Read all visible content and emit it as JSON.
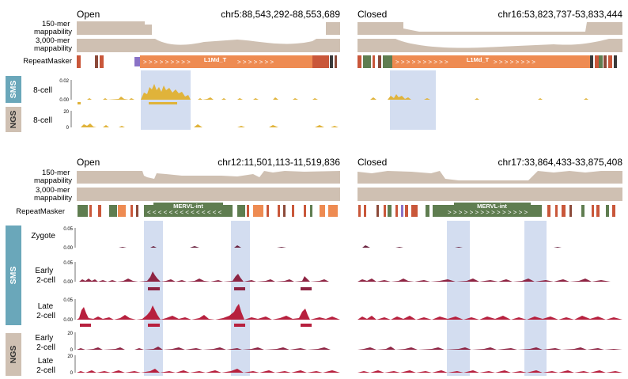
{
  "colors": {
    "mappability": "#cfc0b2",
    "sms_8cell": "#e0b33a",
    "sms_2cell": "#8e2443",
    "late_2cell": "#b7203e",
    "highlight": "#d3ddf0",
    "sms_tab": "#6aa7ba",
    "ngs_tab": "#cfc0b2",
    "line_orange": "#ee8b52",
    "ervl_green": "#5f7d50"
  },
  "top": {
    "left_panel": {
      "state": "Open",
      "locus": "chr5:88,543,292-88,553,689"
    },
    "right_panel": {
      "state": "Closed",
      "locus": "chr16:53,823,737-53,833,444"
    },
    "track_labels": {
      "map150": "150-mer\nmappability",
      "map3000": "3,000-mer\nmappability",
      "repeatmasker": "RepeatMasker"
    },
    "element_name": "L1Md_T",
    "sms_tab": "SMS",
    "ngs_tab": "NGS",
    "sms_track": {
      "label": "8-cell",
      "ticks": [
        "0.02",
        "0.00"
      ]
    },
    "ngs_track": {
      "label": "8-cell",
      "ticks": [
        "20",
        "0"
      ]
    }
  },
  "bottom": {
    "left_panel": {
      "state": "Open",
      "locus": "chr12:11,501,113-11,519,836"
    },
    "right_panel": {
      "state": "Closed",
      "locus": "chr17:33,864,433-33,875,408"
    },
    "track_labels": {
      "map150": "150-mer\nmappability",
      "map3000": "3,000-mer\nmappability",
      "repeatmasker": "RepeatMasker"
    },
    "element_name": "MERVL-int",
    "sms_tab": "SMS",
    "ngs_tab": "NGS",
    "sms_tracks": [
      {
        "label": "Zygote",
        "ticks": [
          "0.05",
          "0.00"
        ]
      },
      {
        "label": "Early\n2-cell",
        "ticks": [
          "0.05",
          "0.00"
        ]
      },
      {
        "label": "Late\n2-cell",
        "ticks": [
          "0.05",
          "0.00"
        ]
      }
    ],
    "ngs_tracks": [
      {
        "label": "Early\n2-cell",
        "ticks": [
          "20",
          "0"
        ]
      },
      {
        "label": "Late\n2-cell",
        "ticks": [
          "20",
          "0"
        ]
      }
    ]
  }
}
